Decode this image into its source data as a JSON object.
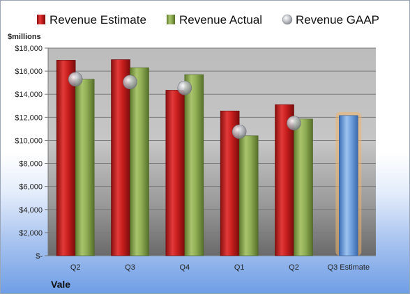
{
  "chart_data": {
    "type": "bar",
    "company": "Vale",
    "ylabel": "$millions",
    "categories": [
      "Q2",
      "Q3",
      "Q4",
      "Q1",
      "Q2",
      "Q3 Estimate"
    ],
    "series": [
      {
        "name": "Revenue Estimate",
        "values": [
          16950,
          17000,
          14350,
          12550,
          13100,
          null
        ],
        "color": "#c81e1e"
      },
      {
        "name": "Revenue Actual",
        "values": [
          15300,
          16300,
          15700,
          10400,
          11850,
          null
        ],
        "color": "#8fae54"
      },
      {
        "name": "Revenue GAAP",
        "values": [
          15300,
          15050,
          14550,
          10750,
          11500,
          null
        ],
        "color": "#b8bcc4"
      }
    ],
    "forecast": {
      "category": "Q3 Estimate",
      "value": 12150,
      "color": "#6fa0dc",
      "highlight": "#f2b56a"
    },
    "ylim": [
      0,
      18000
    ],
    "yticks": [
      0,
      2000,
      4000,
      6000,
      8000,
      10000,
      12000,
      14000,
      16000,
      18000
    ],
    "ytick_labels": [
      "$-",
      "$2,000",
      "$4,000",
      "$6,000",
      "$8,000",
      "$10,000",
      "$12,000",
      "$14,000",
      "$16,000",
      "$18,000"
    ],
    "legend_position": "top",
    "grid": true
  }
}
